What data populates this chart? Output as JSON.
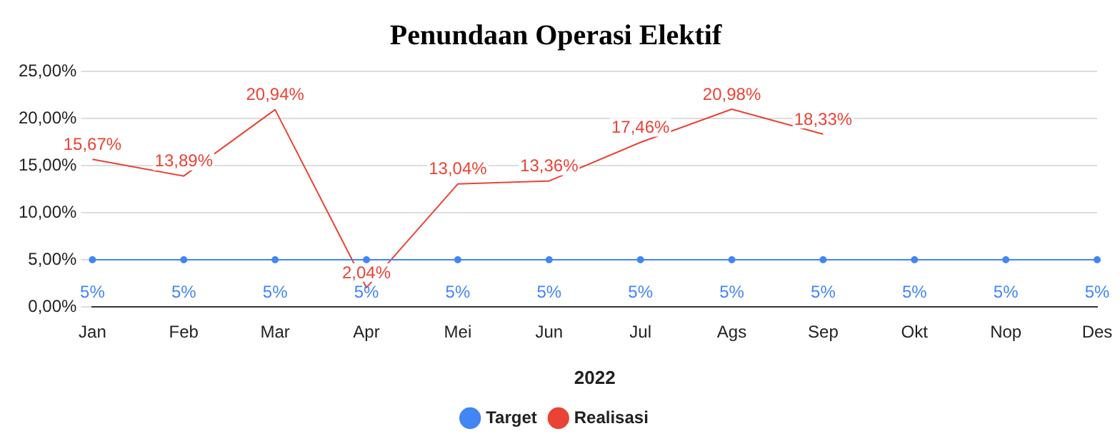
{
  "chart_data": {
    "type": "line",
    "title": "Penundaan Operasi Elektif",
    "xlabel": "2022",
    "categories": [
      "Jan",
      "Feb",
      "Mar",
      "Apr",
      "Mei",
      "Jun",
      "Jul",
      "Ags",
      "Sep",
      "Okt",
      "Nop",
      "Des"
    ],
    "series": [
      {
        "name": "Target",
        "color": "#4285f4",
        "marker": "circle",
        "values": [
          5,
          5,
          5,
          5,
          5,
          5,
          5,
          5,
          5,
          5,
          5,
          5
        ],
        "value_labels": [
          "5%",
          "5%",
          "5%",
          "5%",
          "5%",
          "5%",
          "5%",
          "5%",
          "5%",
          "5%",
          "5%",
          "5%"
        ]
      },
      {
        "name": "Realisasi",
        "color": "#ea4335",
        "marker": "none",
        "values": [
          15.67,
          13.89,
          20.94,
          2.04,
          13.04,
          13.36,
          17.46,
          20.98,
          18.33,
          null,
          null,
          null
        ],
        "value_labels": [
          "15,67%",
          "13,89%",
          "20,94%",
          "2,04%",
          "13,04%",
          "13,36%",
          "17,46%",
          "20,98%",
          "18,33%",
          null,
          null,
          null
        ]
      }
    ],
    "ylim": [
      0,
      25
    ],
    "yticks": [
      {
        "value": 0,
        "label": "0,00%"
      },
      {
        "value": 5,
        "label": "5,00%"
      },
      {
        "value": 10,
        "label": "10,00%"
      },
      {
        "value": 15,
        "label": "15,00%"
      },
      {
        "value": 20,
        "label": "20,00%"
      },
      {
        "value": 25,
        "label": "25,00%"
      }
    ],
    "grid": "y",
    "legend": "bottom"
  }
}
